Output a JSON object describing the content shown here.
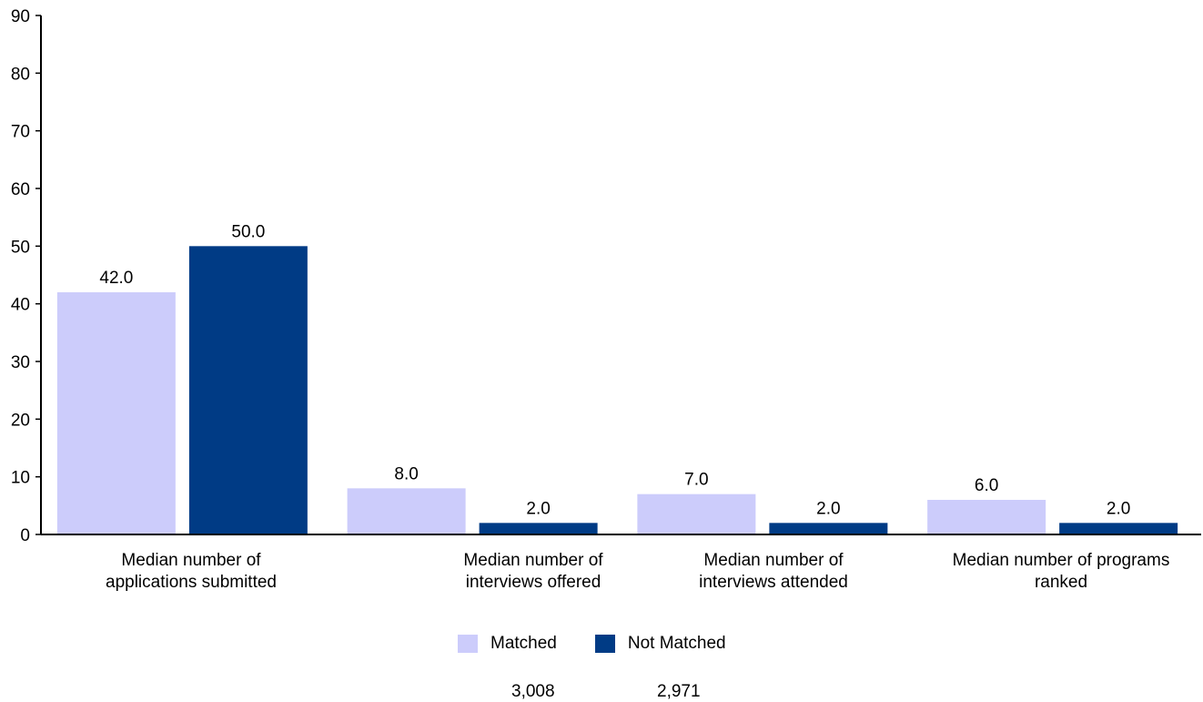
{
  "chart_data": {
    "type": "bar",
    "categories": [
      [
        "Median number of",
        "applications submitted"
      ],
      [
        "Median number of",
        "interviews offered"
      ],
      [
        "Median number of",
        "interviews attended"
      ],
      [
        "Median number of programs",
        "ranked"
      ]
    ],
    "series": [
      {
        "name": "Matched",
        "color": "#ccccfb",
        "values": [
          42.0,
          8.0,
          7.0,
          6.0
        ],
        "count": "3,008"
      },
      {
        "name": "Not Matched",
        "color": "#003b85",
        "values": [
          50.0,
          2.0,
          2.0,
          2.0
        ],
        "count": "2,971"
      }
    ],
    "ylim": [
      0,
      90
    ],
    "yticks": [
      0,
      10,
      20,
      30,
      40,
      50,
      60,
      70,
      80,
      90
    ],
    "value_labels": [
      "42.0",
      "50.0",
      "8.0",
      "2.0",
      "7.0",
      "2.0",
      "6.0",
      "2.0"
    ],
    "legend_position": "bottom-center"
  }
}
